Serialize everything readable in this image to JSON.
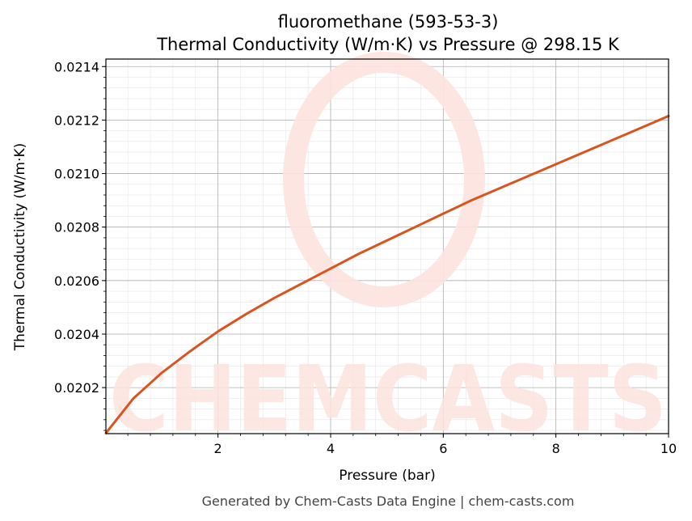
{
  "chart_data": {
    "type": "line",
    "title": "fluoromethane (593-53-3)",
    "subtitle": "Thermal Conductivity (W/m·K) vs Pressure @ 298.15 K",
    "xlabel": "Pressure (bar)",
    "ylabel": "Thermal Conductivity (W/m·K)",
    "xlim": [
      0.01,
      10
    ],
    "ylim": [
      0.020028,
      0.021428
    ],
    "xticks": [
      2,
      4,
      6,
      8,
      10
    ],
    "yticks": [
      0.0202,
      0.0204,
      0.0206,
      0.0208,
      0.021,
      0.0212,
      0.0214
    ],
    "grid": true,
    "legend": "none",
    "series": [
      {
        "color": "#d9541e",
        "x": [
          0.01,
          0.5,
          1.0,
          1.5,
          2.0,
          2.5,
          3.0,
          3.5,
          4.0,
          4.5,
          5.0,
          5.5,
          6.0,
          6.5,
          7.0,
          7.5,
          8.0,
          8.5,
          9.0,
          9.5,
          10.0
        ],
        "y": [
          0.02003,
          0.02016,
          0.020255,
          0.020335,
          0.02041,
          0.020475,
          0.020535,
          0.02059,
          0.020645,
          0.0207,
          0.02075,
          0.0208,
          0.02085,
          0.0209,
          0.020945,
          0.02099,
          0.021035,
          0.02108,
          0.021125,
          0.02117,
          0.021215
        ]
      }
    ]
  },
  "watermark": {
    "text": "CHEMCASTS",
    "color": "#fde3df"
  },
  "footer": {
    "text": "Generated by Chem-Casts Data Engine | chem-casts.com"
  }
}
